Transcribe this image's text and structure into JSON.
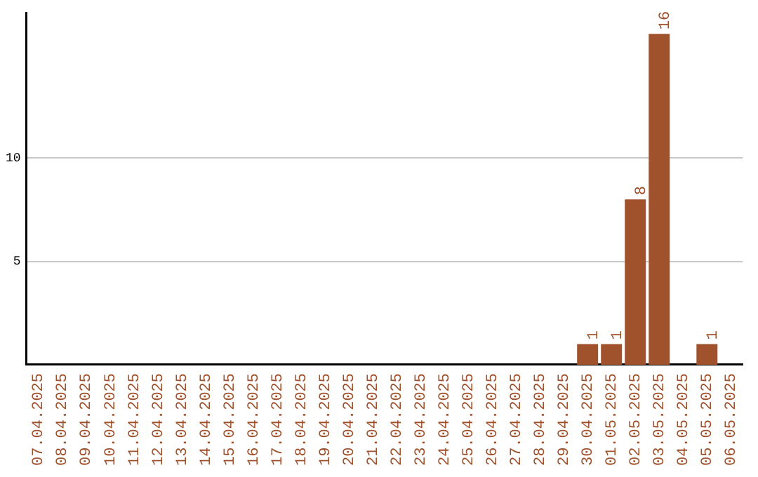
{
  "chart_data": {
    "type": "bar",
    "categories": [
      "07.04.2025",
      "08.04.2025",
      "09.04.2025",
      "10.04.2025",
      "11.04.2025",
      "12.04.2025",
      "13.04.2025",
      "14.04.2025",
      "15.04.2025",
      "16.04.2025",
      "17.04.2025",
      "18.04.2025",
      "19.04.2025",
      "20.04.2025",
      "21.04.2025",
      "22.04.2025",
      "23.04.2025",
      "24.04.2025",
      "25.04.2025",
      "26.04.2025",
      "27.04.2025",
      "28.04.2025",
      "29.04.2025",
      "30.04.2025",
      "01.05.2025",
      "02.05.2025",
      "03.05.2025",
      "04.05.2025",
      "05.05.2025",
      "06.05.2025"
    ],
    "values": [
      0,
      0,
      0,
      0,
      0,
      0,
      0,
      0,
      0,
      0,
      0,
      0,
      0,
      0,
      0,
      0,
      0,
      0,
      0,
      0,
      0,
      0,
      0,
      1,
      1,
      8,
      16,
      0,
      1,
      0
    ],
    "value_labels": [
      null,
      null,
      null,
      null,
      null,
      null,
      null,
      null,
      null,
      null,
      null,
      null,
      null,
      null,
      null,
      null,
      null,
      null,
      null,
      null,
      null,
      null,
      null,
      "1",
      "1",
      "8",
      "16",
      null,
      "1",
      null
    ],
    "color": "#a0522d",
    "ylim": [
      0,
      17
    ],
    "yticks": [
      5,
      10
    ],
    "grid": "y",
    "legend": false
  }
}
